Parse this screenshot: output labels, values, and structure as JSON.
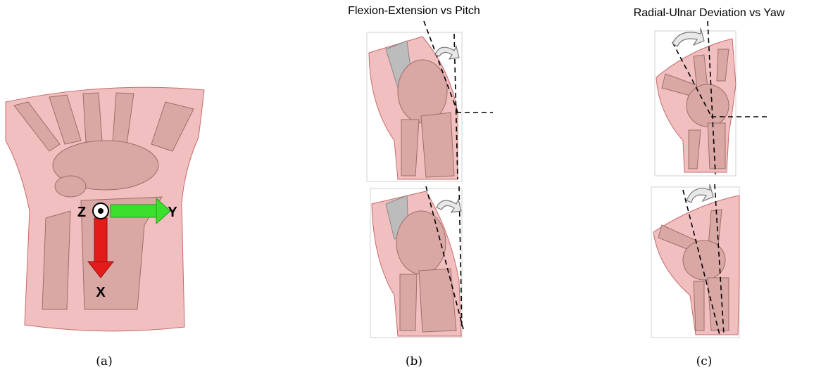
{
  "panels": [
    {
      "caption": "(a)",
      "axes": {
        "z": "Z",
        "y": "Y",
        "x": "X"
      }
    },
    {
      "title": "Flexion-Extension vs Pitch",
      "caption": "(b)"
    },
    {
      "title": "Radial-Ulnar Deviation vs Yaw",
      "caption": "(c)"
    }
  ]
}
